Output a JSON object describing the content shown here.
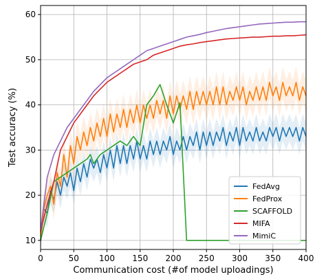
{
  "chart_data": {
    "type": "line",
    "title": "",
    "xlabel": "Communication cost (#of model uploadings)",
    "ylabel": "Test accuracy (%)",
    "xlim": [
      0,
      400
    ],
    "ylim": [
      8,
      62
    ],
    "xticks": [
      0,
      50,
      100,
      150,
      200,
      250,
      300,
      350,
      400
    ],
    "yticks": [
      10,
      20,
      30,
      40,
      50,
      60
    ],
    "grid": true,
    "legend_position": "lower-right",
    "series": [
      {
        "name": "FedAvg",
        "color": "#1f77b4",
        "x": [
          0,
          5,
          10,
          15,
          20,
          25,
          30,
          35,
          40,
          45,
          50,
          55,
          60,
          65,
          70,
          75,
          80,
          85,
          90,
          95,
          100,
          105,
          110,
          115,
          120,
          125,
          130,
          135,
          140,
          145,
          150,
          155,
          160,
          165,
          170,
          175,
          180,
          185,
          190,
          195,
          200,
          205,
          210,
          215,
          220,
          225,
          230,
          235,
          240,
          245,
          250,
          255,
          260,
          265,
          270,
          275,
          280,
          285,
          290,
          295,
          300,
          305,
          310,
          315,
          320,
          325,
          330,
          335,
          340,
          345,
          350,
          355,
          360,
          365,
          370,
          375,
          380,
          385,
          390,
          395,
          400
        ],
        "y": [
          10,
          17,
          16,
          21,
          19,
          23,
          20,
          24,
          22,
          25,
          21,
          26,
          23,
          27,
          24,
          28,
          26,
          28,
          25,
          29,
          26,
          30,
          26,
          31,
          27,
          31,
          27,
          31,
          28,
          32,
          28,
          31,
          28,
          32,
          29,
          32,
          29,
          32,
          30,
          33,
          29,
          32,
          30,
          33,
          30,
          33,
          31,
          34,
          30,
          34,
          31,
          34,
          31,
          34,
          32,
          35,
          31,
          34,
          32,
          35,
          31,
          35,
          32,
          34,
          32,
          35,
          32,
          34,
          32,
          35,
          33,
          35,
          32,
          35,
          33,
          35,
          33,
          35,
          32,
          35,
          33
        ]
      },
      {
        "name": "FedProx",
        "color": "#ff7f0e",
        "x": [
          0,
          5,
          10,
          15,
          20,
          25,
          30,
          35,
          40,
          45,
          50,
          55,
          60,
          65,
          70,
          75,
          80,
          85,
          90,
          95,
          100,
          105,
          110,
          115,
          120,
          125,
          130,
          135,
          140,
          145,
          150,
          155,
          160,
          165,
          170,
          175,
          180,
          185,
          190,
          195,
          200,
          205,
          210,
          215,
          220,
          225,
          230,
          235,
          240,
          245,
          250,
          255,
          260,
          265,
          270,
          275,
          280,
          285,
          290,
          295,
          300,
          305,
          310,
          315,
          320,
          325,
          330,
          335,
          340,
          345,
          350,
          355,
          360,
          365,
          370,
          375,
          380,
          385,
          390,
          395,
          400
        ],
        "y": [
          10,
          17,
          20,
          22,
          18,
          25,
          22,
          29,
          24,
          31,
          27,
          33,
          30,
          34,
          31,
          35,
          32,
          36,
          33,
          37,
          33,
          38,
          34,
          38,
          35,
          39,
          35,
          39,
          36,
          40,
          36,
          40,
          37,
          40,
          37,
          41,
          38,
          41,
          37,
          42,
          38,
          42,
          39,
          42,
          39,
          43,
          39,
          43,
          40,
          43,
          40,
          43,
          40,
          44,
          40,
          44,
          40,
          43,
          41,
          44,
          41,
          44,
          40,
          43,
          41,
          44,
          41,
          44,
          41,
          45,
          42,
          44,
          41,
          45,
          42,
          44,
          42,
          45,
          41,
          44,
          42
        ]
      },
      {
        "name": "SCAFFOLD",
        "color": "#2ca02c",
        "x": [
          0,
          10,
          20,
          30,
          40,
          50,
          60,
          70,
          75,
          80,
          90,
          100,
          110,
          120,
          130,
          140,
          150,
          160,
          170,
          180,
          190,
          200,
          210,
          220,
          230,
          240,
          250,
          260,
          270,
          280,
          290,
          300,
          310,
          320,
          330,
          340,
          350,
          360,
          370,
          380,
          390,
          400
        ],
        "y": [
          10,
          16,
          23,
          24,
          25,
          26,
          27,
          28,
          29,
          27,
          29,
          30,
          31,
          32,
          31,
          33,
          31,
          40,
          42,
          44.5,
          40,
          36,
          40.5,
          10,
          10,
          10,
          10,
          10,
          10,
          10,
          10,
          10,
          10,
          10,
          10,
          10,
          10,
          10,
          10,
          10,
          10,
          10
        ]
      },
      {
        "name": "MIFA",
        "color": "#d62728",
        "x": [
          0,
          10,
          20,
          30,
          40,
          50,
          60,
          70,
          80,
          90,
          100,
          110,
          120,
          130,
          140,
          150,
          160,
          170,
          180,
          190,
          200,
          210,
          220,
          230,
          240,
          250,
          260,
          270,
          280,
          290,
          300,
          310,
          320,
          330,
          340,
          350,
          360,
          370,
          380,
          390,
          400
        ],
        "y": [
          12,
          18,
          23,
          30,
          33,
          36,
          38,
          40,
          42,
          43.5,
          45,
          46,
          47,
          48,
          49,
          49.5,
          50,
          51,
          51.5,
          52,
          52.5,
          53,
          53.3,
          53.5,
          53.8,
          54,
          54.2,
          54.4,
          54.6,
          54.7,
          54.8,
          54.9,
          55,
          55,
          55.1,
          55.2,
          55.2,
          55.3,
          55.3,
          55.4,
          55.5
        ]
      },
      {
        "name": "MimiC",
        "color": "#9467bd",
        "x": [
          0,
          10,
          20,
          30,
          40,
          50,
          60,
          70,
          80,
          90,
          100,
          110,
          120,
          130,
          140,
          150,
          160,
          170,
          180,
          190,
          200,
          210,
          220,
          230,
          240,
          250,
          260,
          270,
          280,
          290,
          300,
          310,
          320,
          330,
          340,
          350,
          360,
          370,
          380,
          390,
          400
        ],
        "y": [
          12,
          24,
          29,
          32,
          35,
          37,
          39,
          41,
          43,
          44.5,
          46,
          47,
          48,
          49,
          50,
          51,
          52,
          52.5,
          53,
          53.5,
          54,
          54.5,
          55,
          55.3,
          55.6,
          56,
          56.3,
          56.6,
          56.9,
          57.1,
          57.3,
          57.5,
          57.7,
          57.9,
          58,
          58.1,
          58.2,
          58.3,
          58.3,
          58.4,
          58.4
        ]
      }
    ]
  }
}
